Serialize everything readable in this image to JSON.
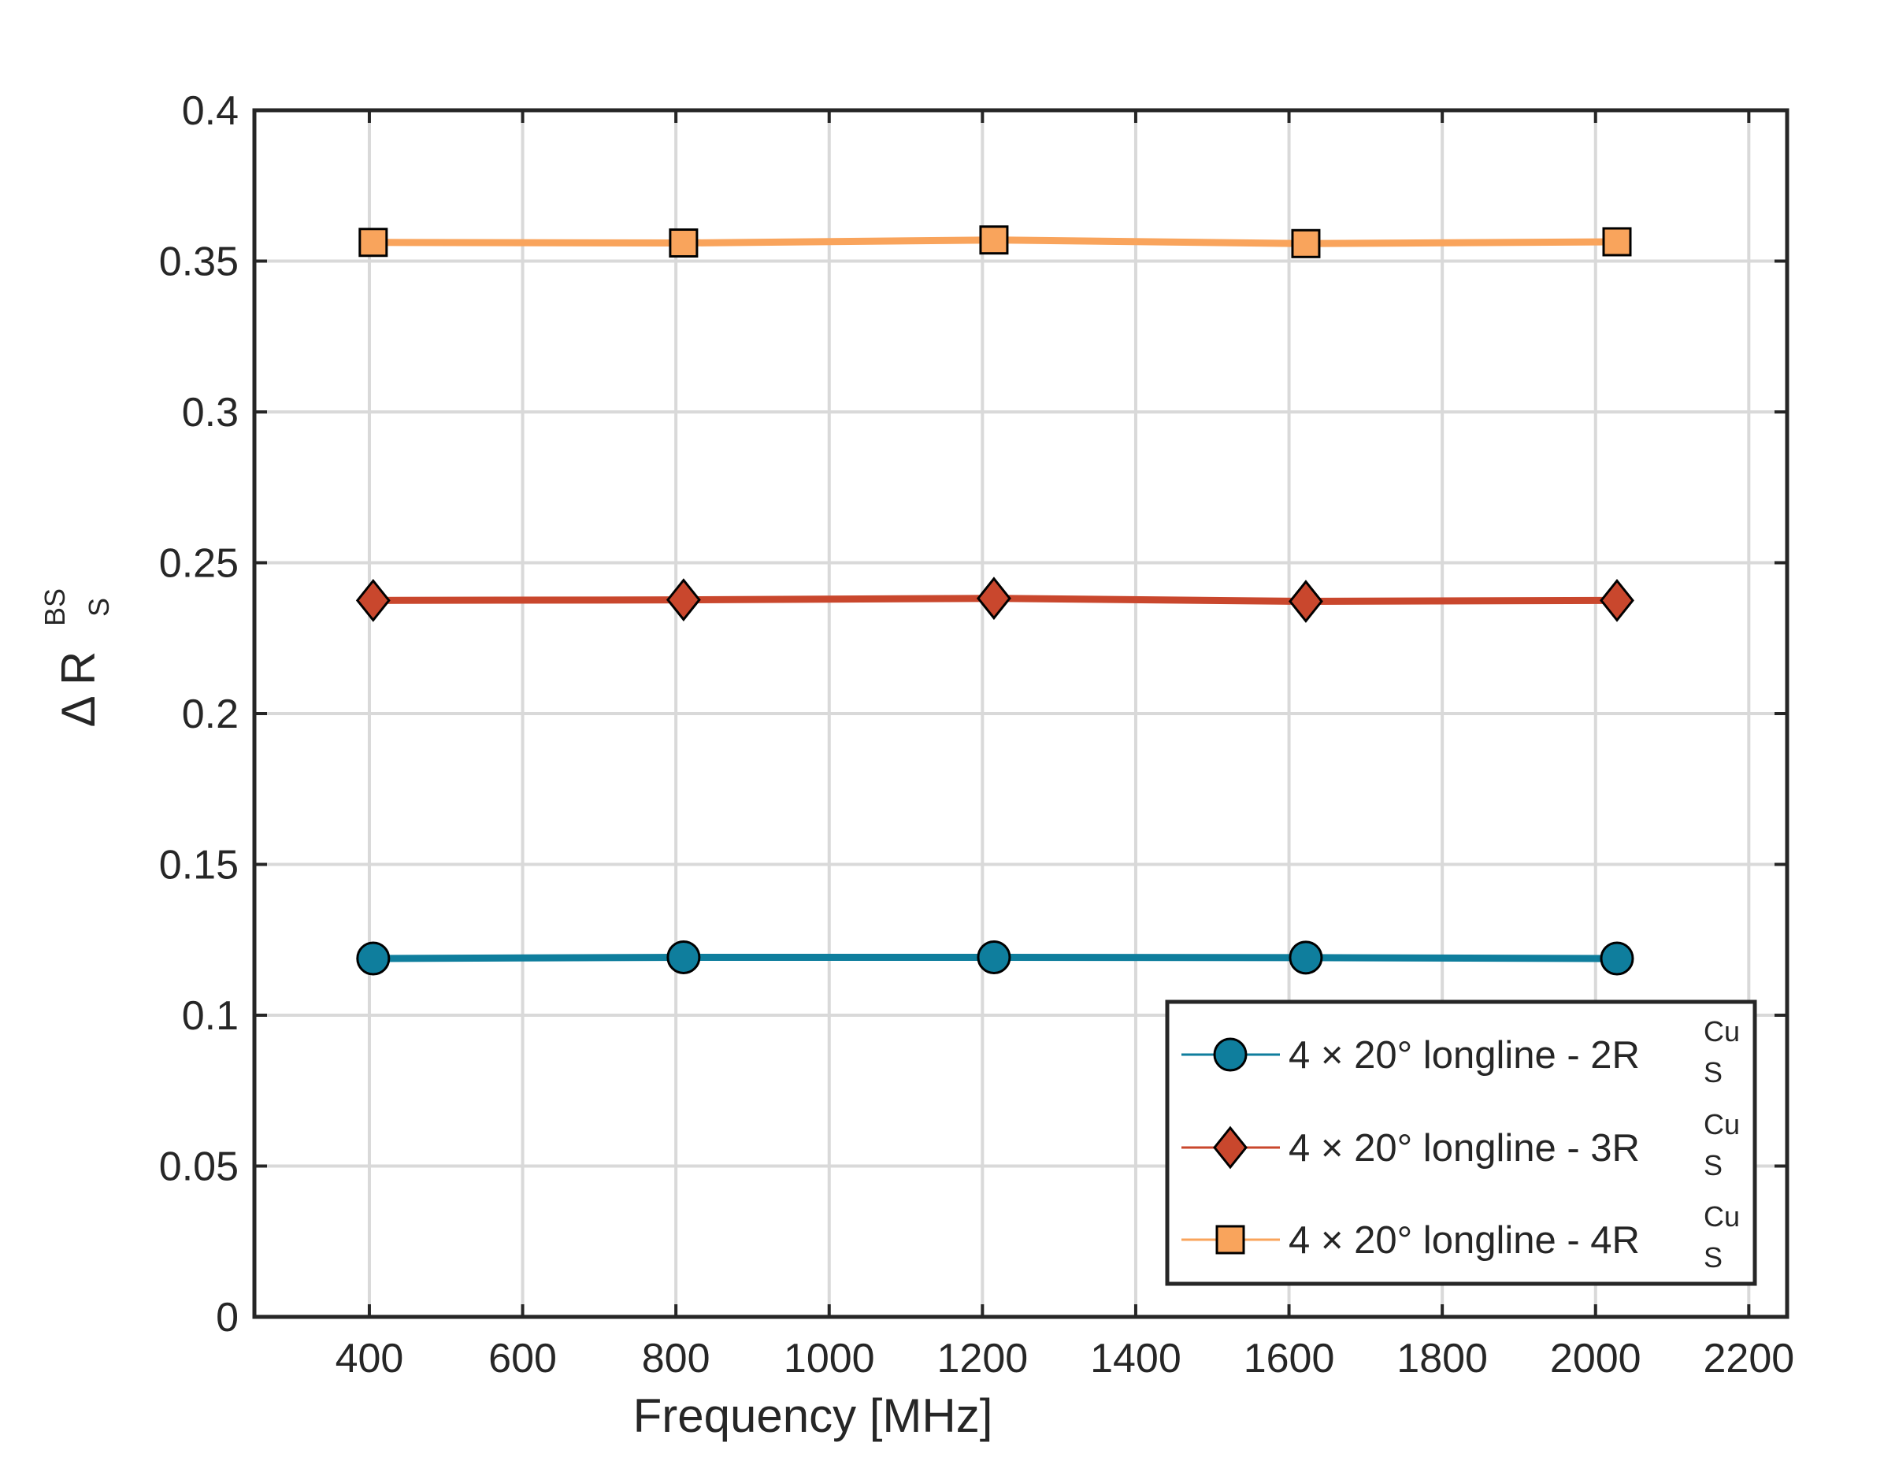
{
  "chart_data": {
    "type": "line",
    "title": "",
    "xlabel": "Frequency [MHz]",
    "ylabel": {
      "prefix": "Δ R",
      "sup": "BS",
      "sub": "S"
    },
    "xlim": [
      250,
      2250
    ],
    "ylim": [
      0,
      0.4
    ],
    "xticks": [
      400,
      600,
      800,
      1000,
      1200,
      1400,
      1600,
      1800,
      2000,
      2200
    ],
    "xtick_labels": [
      "400",
      "600",
      "800",
      "1000",
      "1200",
      "1400",
      "1600",
      "1800",
      "2000",
      "2200"
    ],
    "yticks": [
      0,
      0.05,
      0.1,
      0.15,
      0.2,
      0.25,
      0.3,
      0.35,
      0.4
    ],
    "ytick_labels": [
      "0",
      "0.05",
      "0.1",
      "0.15",
      "0.2",
      "0.25",
      "0.3",
      "0.35",
      "0.4"
    ],
    "grid": true,
    "legend_position": "bottom-right",
    "series": [
      {
        "name": "4 × 20° longline - 2R",
        "name_sup": "Cu",
        "name_sub": "S",
        "color": "#0f7e9d",
        "marker": "circle",
        "x": [
          405,
          810,
          1215,
          1622,
          2028
        ],
        "y": [
          0.1188,
          0.1192,
          0.1192,
          0.1191,
          0.1188
        ]
      },
      {
        "name": "4 × 20° longline - 3R",
        "name_sup": "Cu",
        "name_sub": "S",
        "color": "#c9472d",
        "marker": "diamond",
        "x": [
          405,
          810,
          1215,
          1622,
          2028
        ],
        "y": [
          0.2375,
          0.2377,
          0.2382,
          0.2372,
          0.2375
        ]
      },
      {
        "name": "4 × 20° longline - 4R",
        "name_sup": "Cu",
        "name_sub": "S",
        "color": "#f9a45c",
        "marker": "square",
        "x": [
          405,
          810,
          1215,
          1622,
          2028
        ],
        "y": [
          0.3562,
          0.356,
          0.357,
          0.3558,
          0.3564
        ]
      }
    ]
  }
}
